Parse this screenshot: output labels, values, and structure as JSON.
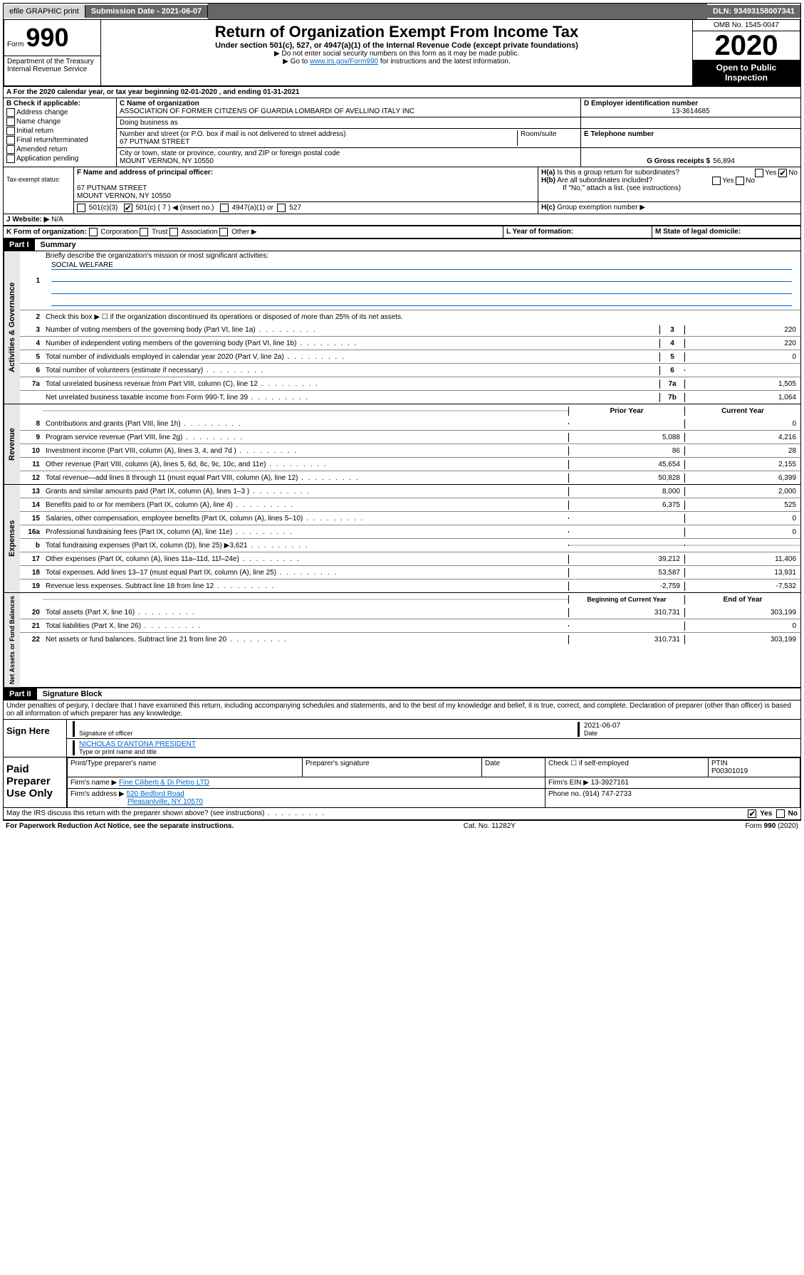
{
  "topbar": {
    "efile": "efile GRAPHIC print",
    "submission_label": "Submission Date - 2021-06-07",
    "dln": "DLN: 93493158007341"
  },
  "header": {
    "form_prefix": "Form",
    "form_number": "990",
    "title": "Return of Organization Exempt From Income Tax",
    "subtitle": "Under section 501(c), 527, or 4947(a)(1) of the Internal Revenue Code (except private foundations)",
    "note1": "▶ Do not enter social security numbers on this form as it may be made public.",
    "note2_pre": "▶ Go to ",
    "note2_link": "www.irs.gov/Form990",
    "note2_post": " for instructions and the latest information.",
    "omb": "OMB No. 1545-0047",
    "year": "2020",
    "open": "Open to Public Inspection",
    "dept": "Department of the Treasury Internal Revenue Service"
  },
  "sectionA": "For the 2020 calendar year, or tax year beginning 02-01-2020   , and ending 01-31-2021",
  "boxB": {
    "title": "B Check if applicable:",
    "items": [
      "Address change",
      "Name change",
      "Initial return",
      "Final return/terminated",
      "Amended return",
      "Application pending"
    ]
  },
  "boxC": {
    "name_label": "C Name of organization",
    "name": "ASSOCIATION OF FORMER CITIZENS OF GUARDIA LOMBARDI OF AVELLINO ITALY INC",
    "dba_label": "Doing business as",
    "addr_label": "Number and street (or P.O. box if mail is not delivered to street address)",
    "room_label": "Room/suite",
    "addr": "67 PUTNAM STREET",
    "city_label": "City or town, state or province, country, and ZIP or foreign postal code",
    "city": "MOUNT VERNON, NY  10550"
  },
  "boxD": {
    "label": "D Employer identification number",
    "value": "13-3614685"
  },
  "boxE": {
    "label": "E Telephone number",
    "value": ""
  },
  "boxG": {
    "label": "G Gross receipts $",
    "value": "56,894"
  },
  "boxF": {
    "label": "F Name and address of principal officer:",
    "line1": "67 PUTNAM STREET",
    "line2": "MOUNT VERNON, NY  10550"
  },
  "boxH": {
    "a": "Is this a group return for subordinates?",
    "b": "Are all subordinates included?",
    "b_note": "If \"No,\" attach a list. (see instructions)",
    "c": "Group exemption number ▶",
    "yes": "Yes",
    "no": "No"
  },
  "taxExempt": {
    "label": "Tax-exempt status:",
    "o1": "501(c)(3)",
    "o2": "501(c) ( 7 ) ◀ (insert no.)",
    "o3": "4947(a)(1) or",
    "o4": "527"
  },
  "boxJ": {
    "label": "J   Website: ▶",
    "value": "N/A"
  },
  "boxK": {
    "label": "K Form of organization:",
    "o1": "Corporation",
    "o2": "Trust",
    "o3": "Association",
    "o4": "Other ▶"
  },
  "boxL": {
    "label": "L Year of formation:"
  },
  "boxM": {
    "label": "M State of legal domicile:"
  },
  "part1": {
    "bar": "Part I",
    "title": "Summary",
    "q1": "Briefly describe the organization's mission or most significant activities:",
    "q1_val": "SOCIAL WELFARE",
    "q2": "Check this box ▶ ☐ if the organization discontinued its operations or disposed of more than 25% of its net assets.",
    "rows_gov": [
      {
        "n": "3",
        "t": "Number of voting members of the governing body (Part VI, line 1a)",
        "c": "3",
        "v": "220"
      },
      {
        "n": "4",
        "t": "Number of independent voting members of the governing body (Part VI, line 1b)",
        "c": "4",
        "v": "220"
      },
      {
        "n": "5",
        "t": "Total number of individuals employed in calendar year 2020 (Part V, line 2a)",
        "c": "5",
        "v": "0"
      },
      {
        "n": "6",
        "t": "Total number of volunteers (estimate if necessary)",
        "c": "6",
        "v": ""
      },
      {
        "n": "7a",
        "t": "Total unrelated business revenue from Part VIII, column (C), line 12",
        "c": "7a",
        "v": "1,505"
      },
      {
        "n": "",
        "t": "Net unrelated business taxable income from Form 990-T, line 39",
        "c": "7b",
        "v": "1,064"
      }
    ],
    "col_prior": "Prior Year",
    "col_current": "Current Year",
    "rows_rev": [
      {
        "n": "8",
        "t": "Contributions and grants (Part VIII, line 1h)",
        "p": "",
        "c": "0"
      },
      {
        "n": "9",
        "t": "Program service revenue (Part VIII, line 2g)",
        "p": "5,088",
        "c": "4,216"
      },
      {
        "n": "10",
        "t": "Investment income (Part VIII, column (A), lines 3, 4, and 7d )",
        "p": "86",
        "c": "28"
      },
      {
        "n": "11",
        "t": "Other revenue (Part VIII, column (A), lines 5, 6d, 8c, 9c, 10c, and 11e)",
        "p": "45,654",
        "c": "2,155"
      },
      {
        "n": "12",
        "t": "Total revenue—add lines 8 through 11 (must equal Part VIII, column (A), line 12)",
        "p": "50,828",
        "c": "6,399"
      }
    ],
    "rows_exp": [
      {
        "n": "13",
        "t": "Grants and similar amounts paid (Part IX, column (A), lines 1–3 )",
        "p": "8,000",
        "c": "2,000"
      },
      {
        "n": "14",
        "t": "Benefits paid to or for members (Part IX, column (A), line 4)",
        "p": "6,375",
        "c": "525"
      },
      {
        "n": "15",
        "t": "Salaries, other compensation, employee benefits (Part IX, column (A), lines 5–10)",
        "p": "",
        "c": "0"
      },
      {
        "n": "16a",
        "t": "Professional fundraising fees (Part IX, column (A), line 11e)",
        "p": "",
        "c": "0"
      },
      {
        "n": "b",
        "t": "Total fundraising expenses (Part IX, column (D), line 25) ▶3,621",
        "p": "shaded",
        "c": "shaded"
      },
      {
        "n": "17",
        "t": "Other expenses (Part IX, column (A), lines 11a–11d, 11f–24e)",
        "p": "39,212",
        "c": "11,406"
      },
      {
        "n": "18",
        "t": "Total expenses. Add lines 13–17 (must equal Part IX, column (A), line 25)",
        "p": "53,587",
        "c": "13,931"
      },
      {
        "n": "19",
        "t": "Revenue less expenses. Subtract line 18 from line 12",
        "p": "-2,759",
        "c": "-7,532"
      }
    ],
    "col_begin": "Beginning of Current Year",
    "col_end": "End of Year",
    "rows_net": [
      {
        "n": "20",
        "t": "Total assets (Part X, line 16)",
        "p": "310,731",
        "c": "303,199"
      },
      {
        "n": "21",
        "t": "Total liabilities (Part X, line 26)",
        "p": "",
        "c": "0"
      },
      {
        "n": "22",
        "t": "Net assets or fund balances. Subtract line 21 from line 20",
        "p": "310,731",
        "c": "303,199"
      }
    ],
    "vtab_gov": "Activities & Governance",
    "vtab_rev": "Revenue",
    "vtab_exp": "Expenses",
    "vtab_net": "Net Assets or Fund Balances"
  },
  "part2": {
    "bar": "Part II",
    "title": "Signature Block",
    "penalty": "Under penalties of perjury, I declare that I have examined this return, including accompanying schedules and statements, and to the best of my knowledge and belief, it is true, correct, and complete. Declaration of preparer (other than officer) is based on all information of which preparer has any knowledge.",
    "sign_here": "Sign Here",
    "sig_officer": "Signature of officer",
    "sig_date": "2021-06-07",
    "date_label": "Date",
    "sig_name": "NICHOLAS D'ANTONA  PRESIDENT",
    "sig_name_label": "Type or print name and title",
    "paid": "Paid Preparer Use Only",
    "prep_name_label": "Print/Type preparer's name",
    "prep_sig_label": "Preparer's signature",
    "prep_date_label": "Date",
    "check_if": "Check ☐ if self-employed",
    "ptin_label": "PTIN",
    "ptin": "P00301019",
    "firm_name_label": "Firm's name    ▶",
    "firm_name": "Fine Ciliberti & Di Pietro LTD",
    "firm_ein_label": "Firm's EIN ▶",
    "firm_ein": "13-3927161",
    "firm_addr_label": "Firm's address ▶",
    "firm_addr1": "520 Bedford Road",
    "firm_addr2": "Pleasantville, NY  10570",
    "phone_label": "Phone no.",
    "phone": "(914) 747-2733",
    "discuss": "May the IRS discuss this return with the preparer shown above? (see instructions)",
    "yes": "Yes",
    "no": "No"
  },
  "footer": {
    "left": "For Paperwork Reduction Act Notice, see the separate instructions.",
    "mid": "Cat. No. 11282Y",
    "right": "Form 990 (2020)"
  }
}
